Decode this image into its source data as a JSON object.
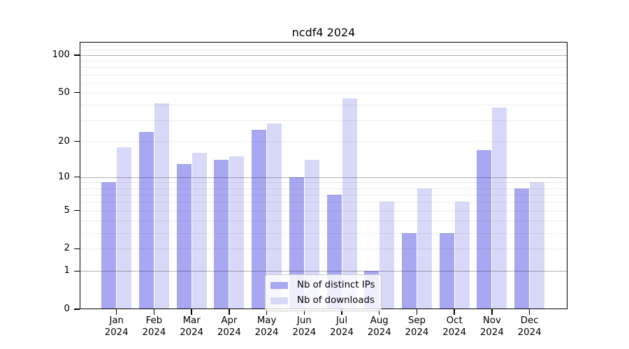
{
  "title": "ncdf4 2024",
  "legend": {
    "items": [
      {
        "label": "Nb of distinct IPs"
      },
      {
        "label": "Nb of downloads"
      }
    ]
  },
  "colors": {
    "distinct_ips": "#a8a8f2",
    "downloads": "#d8d8f8",
    "grid_major": "rgba(0,0,0,0.30)",
    "grid_minor": "rgba(0,0,0,0.07)",
    "axis": "#000000",
    "legend_border": "#cccccc"
  },
  "chart_data": {
    "type": "bar",
    "title": "ncdf4 2024",
    "categories": [
      "Jan 2024",
      "Feb 2024",
      "Mar 2024",
      "Apr 2024",
      "May 2024",
      "Jun 2024",
      "Jul 2024",
      "Aug 2024",
      "Sep 2024",
      "Oct 2024",
      "Nov 2024",
      "Dec 2024"
    ],
    "series": [
      {
        "name": "Nb of distinct IPs",
        "color": "#a8a8f2",
        "values": [
          9,
          24,
          13,
          14,
          25,
          10,
          7,
          1,
          3,
          3,
          17,
          8
        ]
      },
      {
        "name": "Nb of downloads",
        "color": "#d8d8f8",
        "values": [
          18,
          41,
          16,
          15,
          28,
          14,
          45,
          6,
          8,
          6,
          38,
          9
        ]
      }
    ],
    "yscale": "log1p",
    "ylim": [
      0,
      130
    ],
    "yticks": [
      100,
      50,
      20,
      10,
      5,
      2,
      1,
      0
    ],
    "grid": "horizontal",
    "legend_position": "lower center inside"
  }
}
